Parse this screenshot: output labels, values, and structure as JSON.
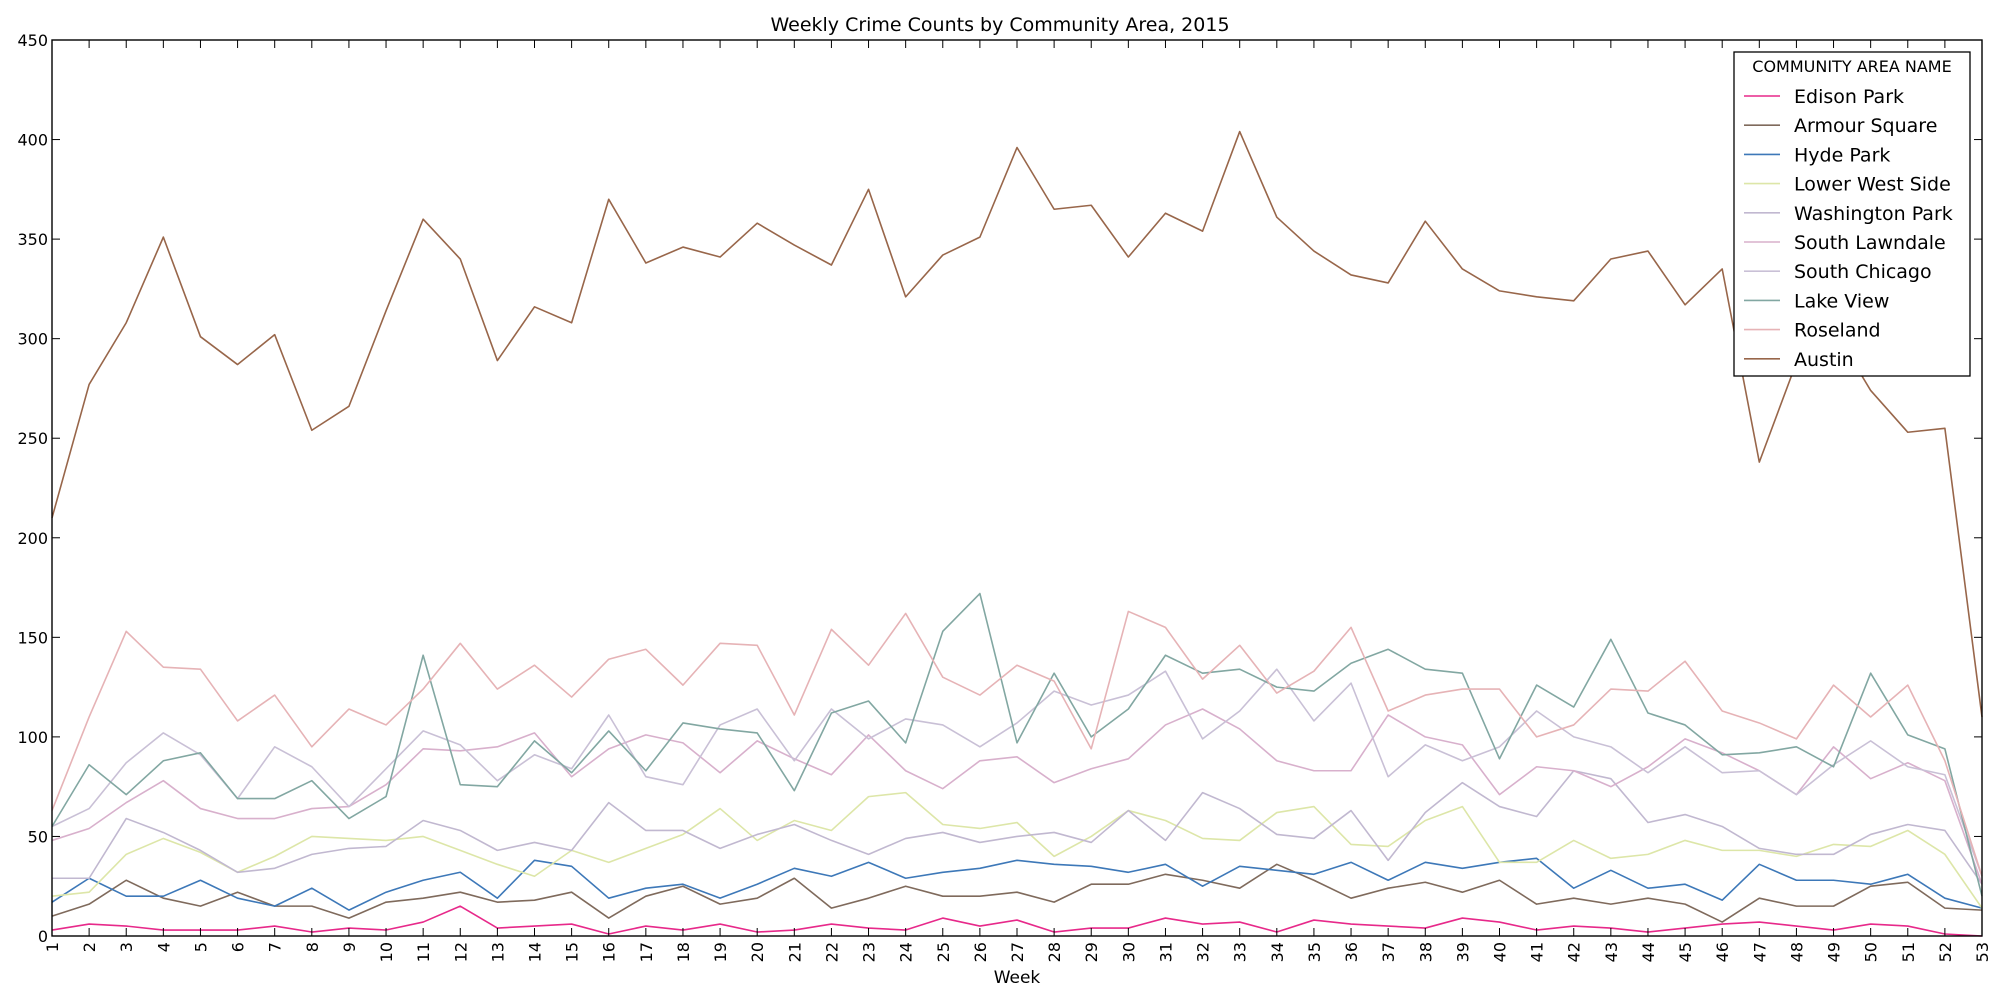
{
  "chart_data": {
    "type": "line",
    "title": "Weekly Crime Counts by Community Area, 2015",
    "xlabel": "Week",
    "ylabel": "",
    "xlim": [
      1,
      53
    ],
    "ylim": [
      0,
      450
    ],
    "grid": false,
    "legend": {
      "title": "COMMUNITY AREA NAME",
      "placement": "top-right"
    },
    "x": [
      1,
      2,
      3,
      4,
      5,
      6,
      7,
      8,
      9,
      10,
      11,
      12,
      13,
      14,
      15,
      16,
      17,
      18,
      19,
      20,
      21,
      22,
      23,
      24,
      25,
      26,
      27,
      28,
      29,
      30,
      31,
      32,
      33,
      34,
      35,
      36,
      37,
      38,
      39,
      40,
      41,
      42,
      43,
      44,
      45,
      46,
      47,
      48,
      49,
      50,
      51,
      52,
      53
    ],
    "x_tick_labels": [
      "1",
      "2",
      "3",
      "4",
      "5",
      "6",
      "7",
      "8",
      "9",
      "10",
      "11",
      "12",
      "13",
      "14",
      "15",
      "16",
      "17",
      "18",
      "19",
      "20",
      "21",
      "22",
      "23",
      "24",
      "25",
      "26",
      "27",
      "28",
      "29",
      "30",
      "31",
      "32",
      "33",
      "34",
      "35",
      "36",
      "37",
      "38",
      "39",
      "40",
      "41",
      "42",
      "43",
      "44",
      "45",
      "46",
      "47",
      "48",
      "49",
      "50",
      "51",
      "52",
      "53"
    ],
    "y_ticks": [
      0,
      50,
      100,
      150,
      200,
      250,
      300,
      350,
      400,
      450
    ],
    "y_tick_labels": [
      "0",
      "50",
      "100",
      "150",
      "200",
      "250",
      "300",
      "350",
      "400",
      "450"
    ],
    "series": [
      {
        "name": "Edison Park",
        "color": "#e7298a",
        "values": [
          3,
          6,
          5,
          3,
          3,
          3,
          5,
          2,
          4,
          3,
          7,
          15,
          4,
          5,
          6,
          1,
          5,
          3,
          6,
          2,
          3,
          6,
          4,
          3,
          9,
          5,
          8,
          2,
          4,
          4,
          9,
          6,
          7,
          2,
          8,
          6,
          5,
          4,
          9,
          7,
          3,
          5,
          4,
          2,
          4,
          6,
          7,
          5,
          3,
          6,
          5,
          1,
          0
        ]
      },
      {
        "name": "Armour Square",
        "color": "#7f6a5c",
        "values": [
          10,
          16,
          28,
          19,
          15,
          22,
          15,
          15,
          9,
          17,
          19,
          22,
          17,
          18,
          22,
          9,
          20,
          25,
          16,
          19,
          29,
          14,
          19,
          25,
          20,
          20,
          22,
          17,
          26,
          26,
          31,
          28,
          24,
          36,
          28,
          19,
          24,
          27,
          22,
          28,
          16,
          19,
          16,
          19,
          16,
          7,
          19,
          15,
          15,
          25,
          27,
          14,
          13
        ]
      },
      {
        "name": "Hyde Park",
        "color": "#3d78b8",
        "values": [
          17,
          29,
          20,
          20,
          28,
          19,
          15,
          24,
          13,
          22,
          28,
          32,
          19,
          38,
          35,
          19,
          24,
          26,
          19,
          26,
          34,
          30,
          37,
          29,
          32,
          34,
          38,
          36,
          35,
          32,
          36,
          25,
          35,
          33,
          31,
          37,
          28,
          37,
          34,
          37,
          39,
          24,
          33,
          24,
          26,
          18,
          36,
          28,
          28,
          26,
          31,
          19,
          14
        ]
      },
      {
        "name": "Lower West Side",
        "color": "#dde6a8",
        "values": [
          20,
          22,
          41,
          49,
          42,
          32,
          40,
          50,
          49,
          48,
          50,
          43,
          36,
          30,
          43,
          37,
          44,
          51,
          64,
          48,
          58,
          53,
          70,
          72,
          56,
          54,
          57,
          40,
          50,
          63,
          58,
          49,
          48,
          62,
          65,
          46,
          45,
          58,
          65,
          37,
          37,
          48,
          39,
          41,
          48,
          43,
          43,
          40,
          46,
          45,
          53,
          41,
          14
        ]
      },
      {
        "name": "Washington Park",
        "color": "#c1b8d0",
        "values": [
          29,
          29,
          59,
          52,
          43,
          32,
          34,
          41,
          44,
          45,
          58,
          53,
          43,
          47,
          43,
          67,
          53,
          53,
          44,
          51,
          56,
          48,
          41,
          49,
          52,
          47,
          50,
          52,
          47,
          63,
          48,
          72,
          64,
          51,
          49,
          63,
          38,
          62,
          77,
          65,
          60,
          83,
          79,
          57,
          61,
          55,
          44,
          41,
          41,
          51,
          56,
          53,
          26
        ]
      },
      {
        "name": "South Lawndale",
        "color": "#d8b0cc",
        "values": [
          48,
          54,
          67,
          78,
          64,
          59,
          59,
          64,
          65,
          76,
          94,
          93,
          95,
          102,
          80,
          94,
          101,
          97,
          82,
          98,
          89,
          81,
          101,
          83,
          74,
          88,
          90,
          77,
          84,
          89,
          106,
          114,
          104,
          88,
          83,
          83,
          111,
          100,
          96,
          71,
          85,
          83,
          75,
          85,
          99,
          92,
          83,
          71,
          95,
          79,
          87,
          78,
          26
        ]
      },
      {
        "name": "South Chicago",
        "color": "#c9c0d6",
        "values": [
          55,
          64,
          87,
          102,
          91,
          69,
          95,
          85,
          65,
          84,
          103,
          96,
          78,
          91,
          84,
          111,
          80,
          76,
          106,
          114,
          88,
          114,
          99,
          109,
          106,
          95,
          107,
          123,
          116,
          121,
          133,
          99,
          113,
          134,
          108,
          127,
          80,
          96,
          88,
          95,
          113,
          100,
          95,
          82,
          95,
          82,
          83,
          71,
          86,
          98,
          85,
          81,
          30
        ]
      },
      {
        "name": "Lake View",
        "color": "#82a7a2",
        "values": [
          55,
          86,
          71,
          88,
          92,
          69,
          69,
          78,
          59,
          70,
          141,
          76,
          75,
          98,
          82,
          103,
          83,
          107,
          104,
          102,
          73,
          112,
          118,
          97,
          153,
          172,
          97,
          132,
          100,
          114,
          141,
          132,
          134,
          125,
          123,
          137,
          144,
          134,
          132,
          89,
          126,
          115,
          149,
          112,
          106,
          91,
          92,
          95,
          85,
          132,
          101,
          94,
          20
        ]
      },
      {
        "name": "Roseland",
        "color": "#e6b3b6",
        "values": [
          63,
          110,
          153,
          135,
          134,
          108,
          121,
          95,
          114,
          106,
          124,
          147,
          124,
          136,
          120,
          139,
          144,
          126,
          147,
          146,
          111,
          154,
          136,
          162,
          130,
          121,
          136,
          128,
          94,
          163,
          155,
          129,
          146,
          122,
          133,
          155,
          113,
          121,
          124,
          124,
          100,
          106,
          124,
          123,
          138,
          113,
          107,
          99,
          126,
          110,
          126,
          88,
          30
        ]
      },
      {
        "name": "Austin",
        "color": "#98664a",
        "values": [
          210,
          277,
          308,
          351,
          301,
          287,
          302,
          254,
          266,
          314,
          360,
          340,
          289,
          316,
          308,
          370,
          338,
          346,
          341,
          358,
          347,
          337,
          375,
          321,
          342,
          351,
          396,
          365,
          367,
          341,
          363,
          354,
          404,
          361,
          344,
          332,
          328,
          359,
          335,
          324,
          321,
          319,
          340,
          344,
          317,
          335,
          238,
          288,
          305,
          274,
          253,
          255,
          110
        ]
      }
    ]
  }
}
